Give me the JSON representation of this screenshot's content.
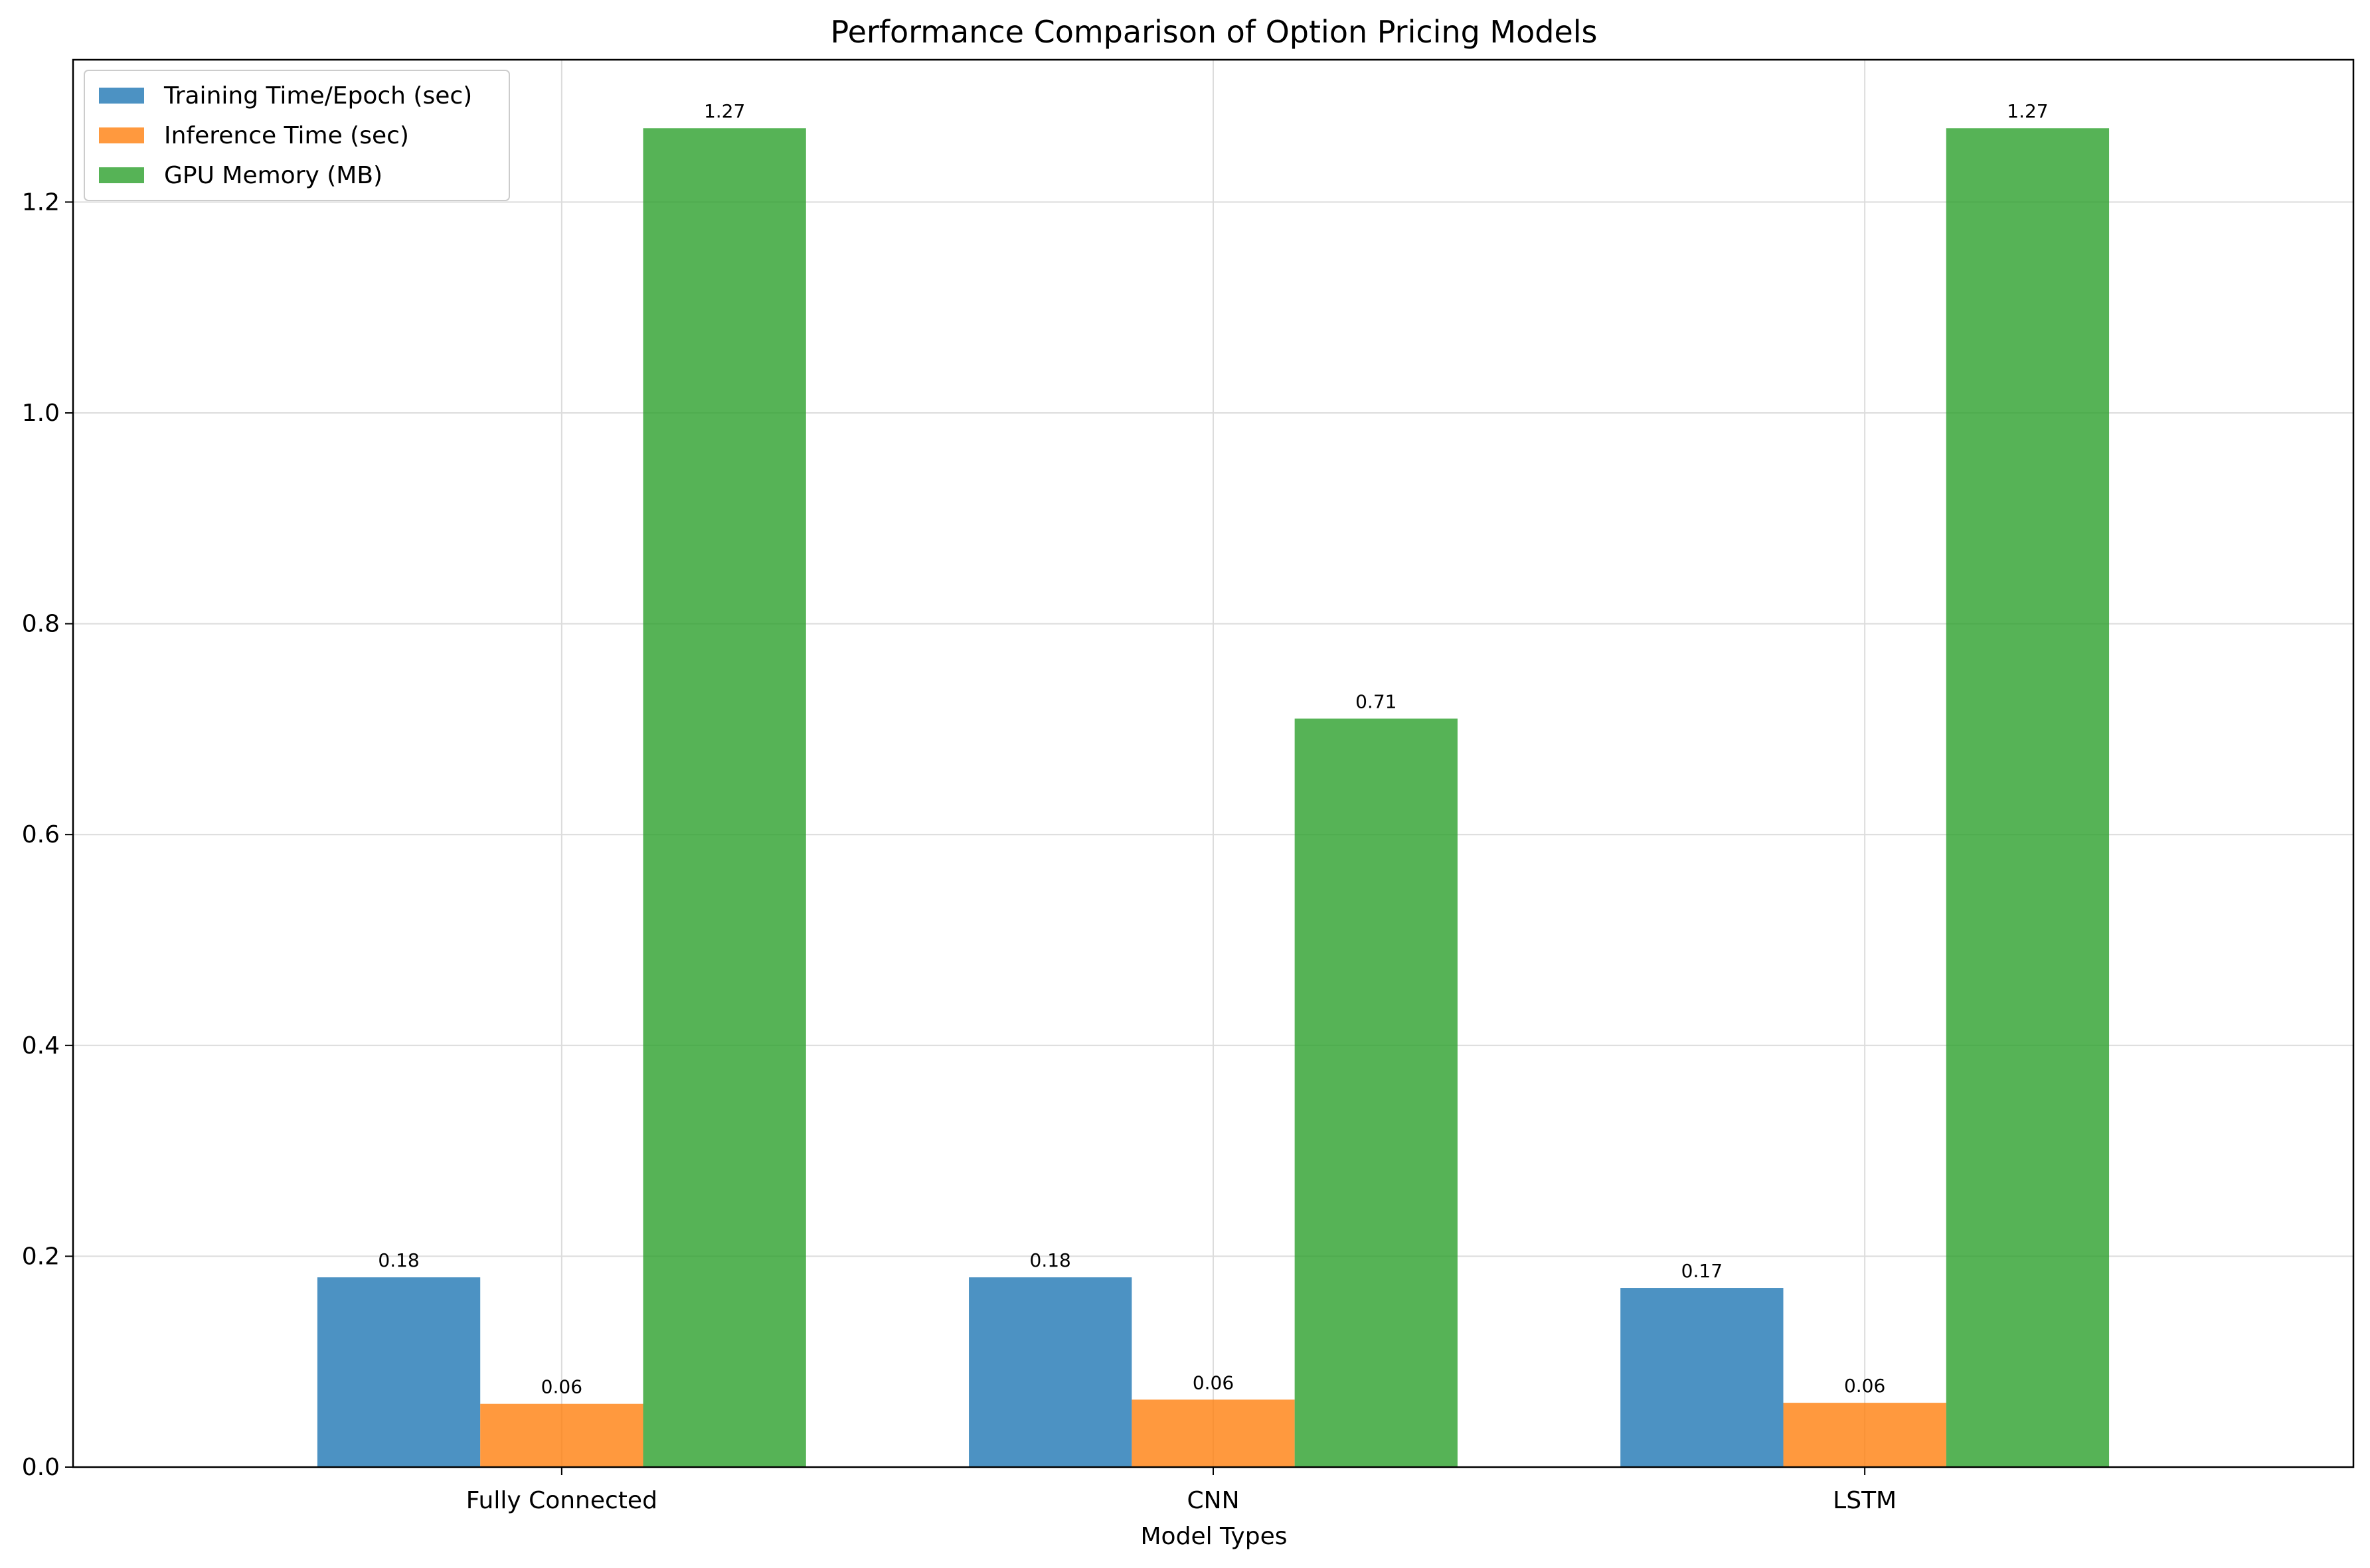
{
  "chart_data": {
    "type": "bar",
    "title": "Performance Comparison of Option Pricing Models",
    "xlabel": "Model Types",
    "ylabel": "",
    "categories": [
      "Fully Connected",
      "CNN",
      "LSTM"
    ],
    "series": [
      {
        "name": "Training Time/Epoch (sec)",
        "color": "#1f77b4",
        "values": [
          0.18,
          0.18,
          0.17
        ],
        "labels": [
          "0.18",
          "0.18",
          "0.17"
        ]
      },
      {
        "name": "Inference Time (sec)",
        "color": "#ff7f0e",
        "values": [
          0.06,
          0.064,
          0.061
        ],
        "labels": [
          "0.06",
          "0.06",
          "0.06"
        ]
      },
      {
        "name": "GPU Memory (MB)",
        "color": "#2ca02c",
        "values": [
          1.27,
          0.71,
          1.27
        ],
        "labels": [
          "1.27",
          "0.71",
          "1.27"
        ]
      }
    ],
    "ylim": [
      0,
      1.335
    ],
    "yticks": [
      0.0,
      0.2,
      0.4,
      0.6,
      0.8,
      1.0,
      1.2
    ],
    "ytick_labels": [
      "0.0",
      "0.2",
      "0.4",
      "0.6",
      "0.8",
      "1.0",
      "1.2"
    ],
    "bar_opacity": 0.8,
    "grid": true,
    "legend_position": "upper left"
  }
}
